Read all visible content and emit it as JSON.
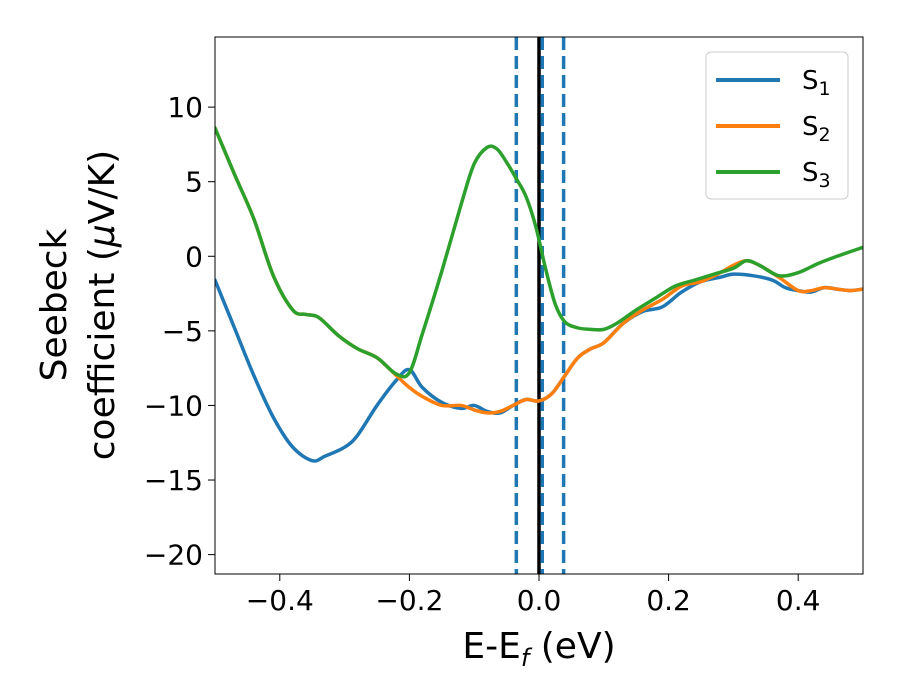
{
  "chart_data": {
    "type": "line",
    "xlabel": {
      "main": "E-E",
      "sub": "f",
      "rest": " (eV)"
    },
    "ylabel": {
      "line1": "Seebeck",
      "line2_pre": "coefficient  (",
      "mu": "μ",
      "line2_post": "V/K)"
    },
    "xlim": [
      -0.5,
      0.5
    ],
    "ylim": [
      -21.3,
      14.7
    ],
    "xticks": [
      {
        "v": -0.4,
        "label": "−0.4"
      },
      {
        "v": -0.2,
        "label": "−0.2"
      },
      {
        "v": 0.0,
        "label": "0.0"
      },
      {
        "v": 0.2,
        "label": "0.2"
      },
      {
        "v": 0.4,
        "label": "0.4"
      }
    ],
    "yticks": [
      {
        "v": 10,
        "label": "10"
      },
      {
        "v": 5,
        "label": "5"
      },
      {
        "v": 0,
        "label": "0"
      },
      {
        "v": -5,
        "label": "−5"
      },
      {
        "v": -10,
        "label": "−10"
      },
      {
        "v": -15,
        "label": "−15"
      },
      {
        "v": -20,
        "label": "−20"
      }
    ],
    "grid": false,
    "legend_position": "top-right",
    "vlines": [
      {
        "x": -0.035,
        "style": "dashed",
        "color": "#1f77b4"
      },
      {
        "x": 0.0,
        "style": "solid",
        "color": "#000000"
      },
      {
        "x": 0.005,
        "style": "dashed",
        "color": "#1f77b4"
      },
      {
        "x": 0.038,
        "style": "dashed",
        "color": "#1f77b4"
      }
    ],
    "series": [
      {
        "name": "S",
        "sub": "1",
        "color": "#1f77b4",
        "x": [
          -0.5,
          -0.47,
          -0.44,
          -0.41,
          -0.38,
          -0.35,
          -0.33,
          -0.3,
          -0.28,
          -0.25,
          -0.22,
          -0.2,
          -0.18,
          -0.15,
          -0.12,
          -0.1,
          -0.08,
          -0.06,
          -0.04,
          -0.02,
          0.0,
          0.02,
          0.04,
          0.06,
          0.08,
          0.1,
          0.13,
          0.16,
          0.19,
          0.22,
          0.25,
          0.28,
          0.3,
          0.33,
          0.36,
          0.38,
          0.4,
          0.42,
          0.44,
          0.46,
          0.48,
          0.5
        ],
        "y": [
          -1.6,
          -4.8,
          -8.0,
          -10.8,
          -12.8,
          -13.7,
          -13.4,
          -12.8,
          -12.0,
          -10.0,
          -8.3,
          -7.6,
          -8.8,
          -9.8,
          -10.2,
          -10.0,
          -10.4,
          -10.5,
          -10.0,
          -9.6,
          -9.7,
          -9.2,
          -8.0,
          -6.8,
          -6.2,
          -5.8,
          -4.5,
          -3.7,
          -3.4,
          -2.4,
          -1.7,
          -1.4,
          -1.2,
          -1.3,
          -1.6,
          -2.1,
          -2.3,
          -2.4,
          -2.1,
          -2.2,
          -2.3,
          -2.2
        ]
      },
      {
        "name": "S",
        "sub": "2",
        "color": "#ff7f0e",
        "x": [
          -0.5,
          -0.47,
          -0.44,
          -0.41,
          -0.38,
          -0.36,
          -0.34,
          -0.31,
          -0.28,
          -0.25,
          -0.22,
          -0.2,
          -0.18,
          -0.15,
          -0.12,
          -0.1,
          -0.08,
          -0.06,
          -0.04,
          -0.02,
          0.0,
          0.02,
          0.04,
          0.06,
          0.08,
          0.1,
          0.13,
          0.16,
          0.19,
          0.22,
          0.25,
          0.28,
          0.3,
          0.32,
          0.34,
          0.37,
          0.4,
          0.42,
          0.44,
          0.46,
          0.48,
          0.5
        ],
        "y": [
          8.6,
          5.5,
          2.5,
          -1.3,
          -3.6,
          -3.9,
          -4.1,
          -5.3,
          -6.2,
          -6.8,
          -8.0,
          -8.8,
          -9.4,
          -10.0,
          -10.0,
          -10.3,
          -10.5,
          -10.4,
          -10.0,
          -9.6,
          -9.7,
          -9.2,
          -8.0,
          -6.8,
          -6.2,
          -5.8,
          -4.5,
          -3.6,
          -2.9,
          -2.0,
          -1.7,
          -1.1,
          -0.6,
          -0.3,
          -0.6,
          -1.4,
          -2.3,
          -2.3,
          -2.1,
          -2.2,
          -2.3,
          -2.2
        ]
      },
      {
        "name": "S",
        "sub": "3",
        "color": "#2ca02c",
        "x": [
          -0.5,
          -0.47,
          -0.44,
          -0.41,
          -0.38,
          -0.36,
          -0.34,
          -0.31,
          -0.28,
          -0.25,
          -0.22,
          -0.2,
          -0.18,
          -0.15,
          -0.12,
          -0.1,
          -0.08,
          -0.065,
          -0.05,
          -0.035,
          -0.02,
          -0.005,
          0.01,
          0.025,
          0.04,
          0.06,
          0.08,
          0.1,
          0.12,
          0.15,
          0.18,
          0.21,
          0.24,
          0.27,
          0.3,
          0.32,
          0.34,
          0.37,
          0.4,
          0.43,
          0.46,
          0.5
        ],
        "y": [
          8.6,
          5.5,
          2.5,
          -1.3,
          -3.6,
          -3.9,
          -4.1,
          -5.3,
          -6.2,
          -6.8,
          -7.9,
          -7.8,
          -5.2,
          -1.0,
          3.5,
          6.2,
          7.3,
          7.2,
          6.3,
          5.2,
          4.0,
          2.0,
          -0.8,
          -3.2,
          -4.4,
          -4.8,
          -4.9,
          -4.9,
          -4.5,
          -3.6,
          -2.8,
          -2.0,
          -1.6,
          -1.2,
          -0.8,
          -0.3,
          -0.6,
          -1.3,
          -1.1,
          -0.5,
          0.0,
          0.6
        ]
      }
    ]
  }
}
